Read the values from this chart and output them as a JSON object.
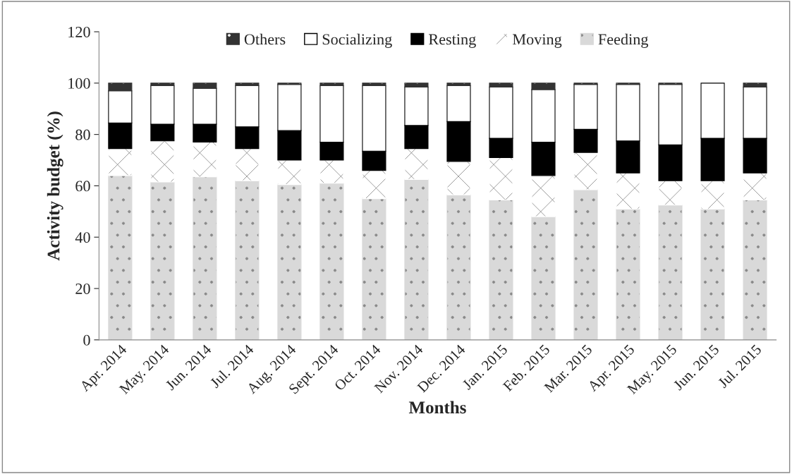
{
  "chart_data": {
    "type": "bar",
    "stacked": true,
    "xlabel": "Months",
    "ylabel": "Activity budget (%)",
    "categories": [
      "Apr. 2014",
      "May. 2014",
      "Jun. 2014",
      "Jul. 2014",
      "Aug. 2014",
      "Sept. 2014",
      "Oct. 2014",
      "Nov. 2014",
      "Dec. 2014",
      "Jan. 2015",
      "Feb. 2015",
      "Mar. 2015",
      "Apr. 2015",
      "May. 2015",
      "Jun. 2015",
      "Jul. 2015"
    ],
    "series": [
      {
        "name": "Feeding",
        "color": "#d9d9d9",
        "values": [
          64,
          61.5,
          63.5,
          62,
          60.5,
          61,
          55,
          62.5,
          56.5,
          54.5,
          48,
          58.5,
          51,
          52.5,
          51,
          54.5
        ]
      },
      {
        "name": "Moving",
        "color": "#ffffff",
        "values": [
          10.5,
          16,
          13.5,
          12.5,
          9.5,
          9,
          11,
          12,
          13,
          16.5,
          16,
          14.5,
          14,
          9.5,
          11,
          10.5
        ]
      },
      {
        "name": "Resting",
        "color": "#000000",
        "values": [
          10,
          6.5,
          7,
          8.5,
          11.5,
          7,
          7.5,
          9,
          15.5,
          7.5,
          13,
          9,
          12.5,
          14,
          16.5,
          13.5
        ]
      },
      {
        "name": "Socializing",
        "color": "#ffffff",
        "values": [
          12.5,
          15,
          14,
          16,
          18,
          22,
          25.5,
          15,
          14,
          20,
          20.5,
          17.5,
          22,
          23.5,
          21.5,
          20
        ]
      },
      {
        "name": "Others",
        "color": "#333333",
        "values": [
          3,
          1,
          2,
          1,
          0.5,
          1,
          1,
          1.5,
          1,
          1.5,
          2.5,
          0.5,
          0.5,
          0.5,
          0,
          1.5
        ]
      }
    ],
    "ylim": [
      0,
      120
    ],
    "yticks": [
      0,
      20,
      40,
      60,
      80,
      100,
      120
    ],
    "legend": "top",
    "grid": false
  }
}
